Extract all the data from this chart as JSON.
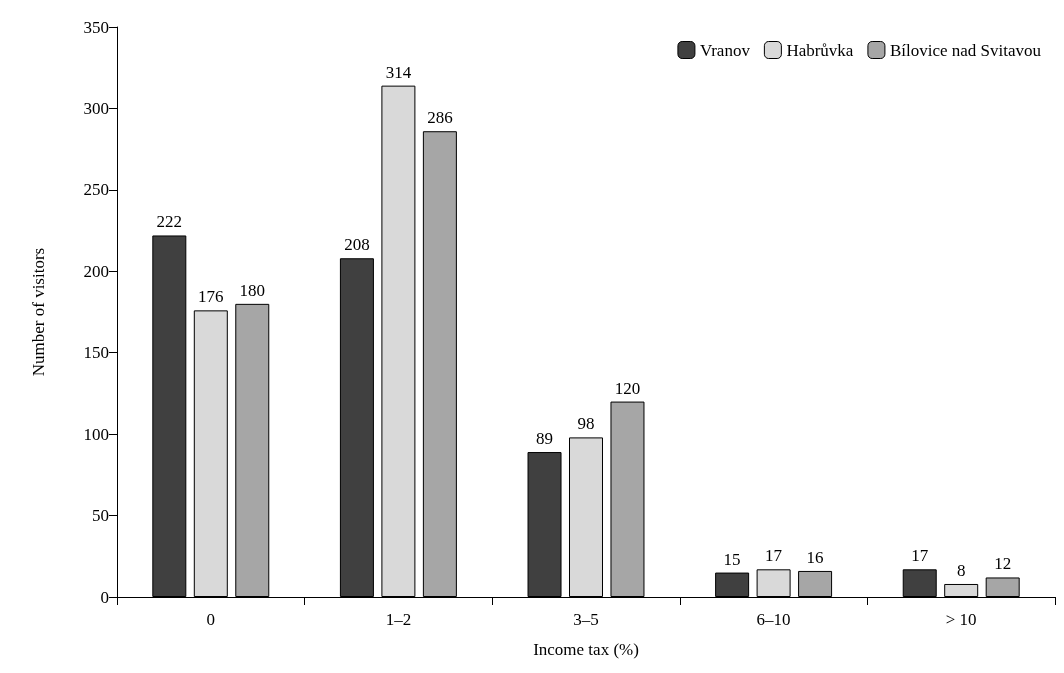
{
  "chart_data": {
    "type": "bar",
    "xlabel": "Income tax (%)",
    "ylabel": "Number of visitors",
    "categories": [
      "0",
      "1–2",
      "3–5",
      "6–10",
      "> 10"
    ],
    "series": [
      {
        "name": "Vranov",
        "color": "#404040",
        "values": [
          222,
          208,
          89,
          15,
          17
        ]
      },
      {
        "name": "Habrůvka",
        "color": "#d9d9d9",
        "values": [
          176,
          314,
          98,
          17,
          8
        ]
      },
      {
        "name": "Bílovice nad Svitavou",
        "color": "#a6a6a6",
        "values": [
          180,
          286,
          120,
          16,
          12
        ]
      }
    ],
    "ylim": [
      0,
      350
    ],
    "yticks": [
      0,
      50,
      100,
      150,
      200,
      250,
      300,
      350
    ],
    "grid": false,
    "legend": "top right",
    "data_labels": true
  }
}
